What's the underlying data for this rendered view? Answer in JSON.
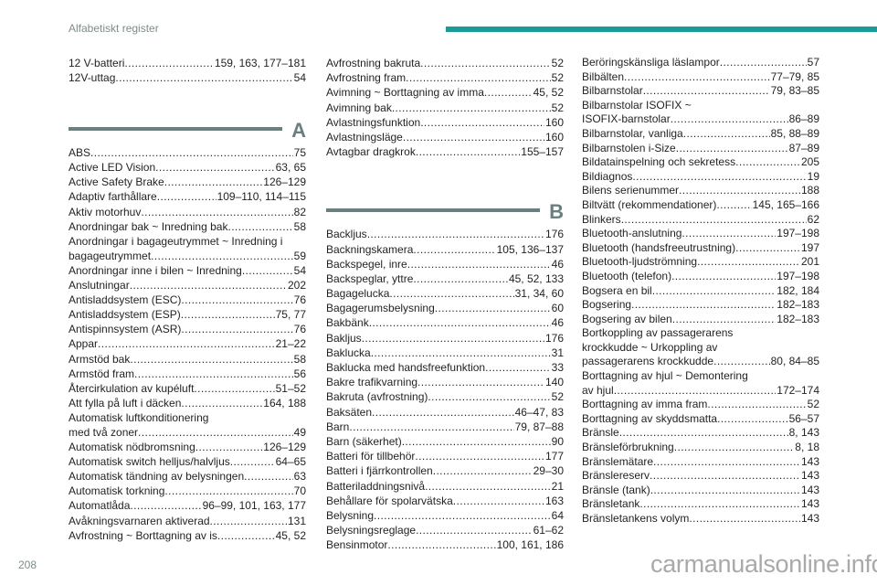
{
  "header": {
    "title": "Alfabetiskt register",
    "accent_color": "#1b9a9a"
  },
  "page_number": "208",
  "watermark": "carmanualsonline.info",
  "columns": [
    {
      "blocks": [
        {
          "entries": [
            {
              "t": "12 V-batteri",
              "p": "159, 163, 177–181"
            },
            {
              "t": "12V-uttag",
              "p": "54"
            }
          ]
        },
        {
          "letter": "A",
          "entries": [
            {
              "t": "ABS",
              "p": "75"
            },
            {
              "t": "Active LED Vision",
              "p": "63, 65"
            },
            {
              "t": "Active Safety Brake",
              "p": "126–129"
            },
            {
              "t": "Adaptiv farthållare",
              "p": "109–110, 114–115"
            },
            {
              "t": "Aktiv motorhuv",
              "p": "82"
            },
            {
              "t": "Anordningar bak ~ Inredning bak",
              "p": "58"
            },
            {
              "t": "Anordningar i bagageutrymmet ~ Inredning i"
            },
            {
              "t": "bagageutrymmet",
              "p": "59"
            },
            {
              "t": "Anordningar inne i bilen ~ Inredning",
              "p": "54"
            },
            {
              "t": "Anslutningar",
              "p": "202"
            },
            {
              "t": "Antisladdsystem (ESC)",
              "p": "76"
            },
            {
              "t": "Antisladdsystem (ESP)",
              "p": "75, 77"
            },
            {
              "t": "Antispinnsystem (ASR)",
              "p": "76"
            },
            {
              "t": "Appar",
              "p": "21–22"
            },
            {
              "t": "Armstöd bak",
              "p": "58"
            },
            {
              "t": "Armstöd fram",
              "p": "56"
            },
            {
              "t": "Återcirkulation av kupéluft",
              "p": "51–52"
            },
            {
              "t": "Att fylla på luft i däcken",
              "p": "164, 188"
            },
            {
              "t": "Automatisk luftkonditionering"
            },
            {
              "t": "med två zoner",
              "p": "49"
            },
            {
              "t": "Automatisk nödbromsning",
              "p": "126–129"
            },
            {
              "t": "Automatisk switch helljus/halvljus",
              "p": "64–65"
            },
            {
              "t": "Automatisk tändning av belysningen",
              "p": "63"
            },
            {
              "t": "Automatisk torkning",
              "p": "70"
            },
            {
              "t": "Automatlåda",
              "p": "96–99, 101, 163, 177"
            },
            {
              "t": "Avåkningsvarnaren aktiverad",
              "p": "131"
            },
            {
              "t": "Avfrostning ~ Borttagning av is",
              "p": "45, 52"
            }
          ]
        }
      ]
    },
    {
      "blocks": [
        {
          "entries": [
            {
              "t": "Avfrostning bakruta",
              "p": "52"
            },
            {
              "t": "Avfrostning fram",
              "p": "52"
            },
            {
              "t": "Avimning ~ Borttagning av imma",
              "p": "45, 52"
            },
            {
              "t": "Avimning bak",
              "p": "52"
            },
            {
              "t": "Avlastningsfunktion",
              "p": "160"
            },
            {
              "t": "Avlastningsläge",
              "p": "160"
            },
            {
              "t": "Avtagbar dragkrok",
              "p": "155–157"
            }
          ]
        },
        {
          "letter": "B",
          "entries": [
            {
              "t": "Backljus",
              "p": "176"
            },
            {
              "t": "Backningskamera",
              "p": "105, 136–137"
            },
            {
              "t": "Backspegel, inre",
              "p": "46"
            },
            {
              "t": "Backspeglar, yttre",
              "p": "45, 52, 133"
            },
            {
              "t": "Bagagelucka",
              "p": "31, 34, 60"
            },
            {
              "t": "Bagagerumsbelysning",
              "p": "60"
            },
            {
              "t": "Bakbänk",
              "p": "46"
            },
            {
              "t": "Bakljus",
              "p": "176"
            },
            {
              "t": "Baklucka",
              "p": "31"
            },
            {
              "t": "Baklucka med handsfreefunktion",
              "p": "33"
            },
            {
              "t": "Bakre trafikvarning",
              "p": "140"
            },
            {
              "t": "Bakruta (avfrostning)",
              "p": "52"
            },
            {
              "t": "Baksäten",
              "p": "46–47, 83"
            },
            {
              "t": "Barn",
              "p": "79, 87–88"
            },
            {
              "t": "Barn (säkerhet)",
              "p": "90"
            },
            {
              "t": "Batteri för tillbehör",
              "p": "177"
            },
            {
              "t": "Batteri i fjärrkontrollen",
              "p": "29–30"
            },
            {
              "t": "Batteriladdningsnivå",
              "p": "21"
            },
            {
              "t": "Behållare för spolarvätska",
              "p": "163"
            },
            {
              "t": "Belysning",
              "p": "64"
            },
            {
              "t": "Belysningsreglage",
              "p": "61–62"
            },
            {
              "t": "Bensinmotor",
              "p": "100, 161, 186"
            }
          ]
        }
      ]
    },
    {
      "blocks": [
        {
          "entries": [
            {
              "t": "Beröringskänsliga läslampor",
              "p": "57"
            },
            {
              "t": "Bilbälten",
              "p": "77–79, 85"
            },
            {
              "t": "Bilbarnstolar",
              "p": "79, 83–85"
            },
            {
              "t": "Bilbarnstolar ISOFIX ~"
            },
            {
              "t": "ISOFIX-barnstolar",
              "p": "86–89"
            },
            {
              "t": "Bilbarnstolar, vanliga",
              "p": "85, 88–89"
            },
            {
              "t": "Bilbarnstolen i-Size",
              "p": "87–89"
            },
            {
              "t": "Bildatainspelning och sekretess",
              "p": "205"
            },
            {
              "t": "Bildiagnos",
              "p": "19"
            },
            {
              "t": "Bilens serienummer",
              "p": "188"
            },
            {
              "t": "Biltvätt (rekommendationer)",
              "p": "145, 165–166"
            },
            {
              "t": "Blinkers",
              "p": "62"
            },
            {
              "t": "Bluetooth-anslutning",
              "p": "197–198"
            },
            {
              "t": "Bluetooth (handsfreeutrustning)",
              "p": "197"
            },
            {
              "t": "Bluetooth-ljudströmning",
              "p": "201"
            },
            {
              "t": "Bluetooth (telefon)",
              "p": "197–198"
            },
            {
              "t": "Bogsera en bil",
              "p": "182, 184"
            },
            {
              "t": "Bogsering",
              "p": "182–183"
            },
            {
              "t": "Bogsering av bilen",
              "p": "182–183"
            },
            {
              "t": "Bortkoppling av passagerarens"
            },
            {
              "t": "krockkudde ~ Urkoppling av"
            },
            {
              "t": "passagerarens krockkudde",
              "p": "80, 84–85"
            },
            {
              "t": "Borttagning av hjul ~ Demontering"
            },
            {
              "t": "av hjul",
              "p": "172–174"
            },
            {
              "t": "Borttagning av imma fram",
              "p": "52"
            },
            {
              "t": "Borttagning av skyddsmatta",
              "p": "56–57"
            },
            {
              "t": "Bränsle",
              "p": "8, 143"
            },
            {
              "t": "Bränsleförbrukning",
              "p": "8, 18"
            },
            {
              "t": "Bränslemätare",
              "p": "143"
            },
            {
              "t": "Bränslereserv",
              "p": "143"
            },
            {
              "t": "Bränsle (tank)",
              "p": "143"
            },
            {
              "t": "Bränsletank",
              "p": "143"
            },
            {
              "t": "Bränsletankens volym",
              "p": "143"
            }
          ]
        }
      ]
    }
  ]
}
